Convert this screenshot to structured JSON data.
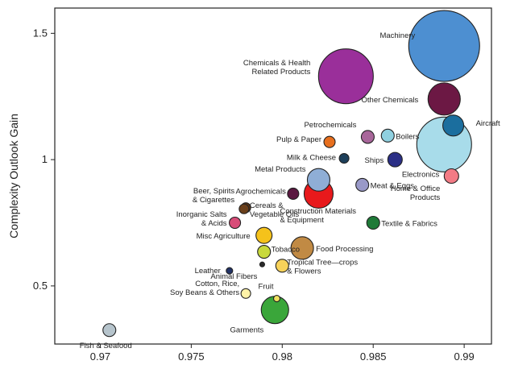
{
  "chart_data": {
    "type": "scatter",
    "title": "",
    "xlabel": "",
    "ylabel": "Complexity Outlook Gain",
    "xlim": [
      0.9675,
      0.9915
    ],
    "ylim": [
      0.27,
      1.6
    ],
    "x_ticks": [
      0.97,
      0.975,
      0.98,
      0.985,
      0.99
    ],
    "y_ticks": [
      0.5,
      1,
      1.5
    ],
    "x_tick_labels": [
      "0.97",
      "0.975",
      "0.98",
      "0.985",
      "0.99"
    ],
    "y_tick_labels": [
      "0.5",
      "1",
      "1.5"
    ],
    "grid": false,
    "points": [
      {
        "label": "Machinery",
        "x": 0.9889,
        "y": 1.45,
        "size": 22,
        "color": "#4d8fd1"
      },
      {
        "label": "Chemicals & Health|Related Products",
        "x": 0.9835,
        "y": 1.33,
        "size": 17,
        "color": "#9a2f9a"
      },
      {
        "label": "Other Chemicals",
        "x": 0.9889,
        "y": 1.24,
        "size": 10,
        "color": "#6c1844"
      },
      {
        "label": "Aircraft",
        "x": 0.9894,
        "y": 1.135,
        "size": 6.5,
        "color": "#1b6e9e"
      },
      {
        "label": "Electronics",
        "x": 0.9889,
        "y": 1.06,
        "size": 17,
        "color": "#a8dcea"
      },
      {
        "label": "Petrochemicals",
        "x": 0.9847,
        "y": 1.09,
        "size": 4,
        "color": "#a8669a"
      },
      {
        "label": "Boilers",
        "x": 0.9858,
        "y": 1.095,
        "size": 4,
        "color": "#8fd0e0"
      },
      {
        "label": "Pulp & Paper",
        "x": 0.9826,
        "y": 1.07,
        "size": 3.5,
        "color": "#e76f1e"
      },
      {
        "label": "Milk & Cheese",
        "x": 0.9834,
        "y": 1.005,
        "size": 3,
        "color": "#1d3f5a"
      },
      {
        "label": "Ships",
        "x": 0.9862,
        "y": 1.0,
        "size": 4.5,
        "color": "#2b2f86"
      },
      {
        "label": "Home & Office|Products",
        "x": 0.9893,
        "y": 0.935,
        "size": 4.5,
        "color": "#f27b85"
      },
      {
        "label": "Metal Products",
        "x": 0.982,
        "y": 0.92,
        "size": 7,
        "color": "#8faed6"
      },
      {
        "label": "Meat & Eggs",
        "x": 0.9844,
        "y": 0.9,
        "size": 4,
        "color": "#9999c8"
      },
      {
        "label": "Agrochemicals",
        "x": 0.9806,
        "y": 0.865,
        "size": 3.5,
        "color": "#5a1840"
      },
      {
        "label": "Construction Materials|& Equipment",
        "x": 0.982,
        "y": 0.865,
        "size": 9,
        "color": "#e8191c"
      },
      {
        "label": "Beer, Spirits|& Cigarettes",
        "x": 0.978,
        "y": 0.81,
        "size": 3,
        "color": "#5b3415"
      },
      {
        "label": "Cereals &|Vegetable Oils",
        "x": 0.9779,
        "y": 0.805,
        "size": 3,
        "color": "#6a3f1a"
      },
      {
        "label": "Inorganic Salts|& Acids",
        "x": 0.9774,
        "y": 0.75,
        "size": 3.5,
        "color": "#d84c78"
      },
      {
        "label": "Textile & Fabrics",
        "x": 0.985,
        "y": 0.75,
        "size": 4,
        "color": "#1f7a38"
      },
      {
        "label": "Misc Agriculture",
        "x": 0.979,
        "y": 0.7,
        "size": 5,
        "color": "#f5c21b"
      },
      {
        "label": "Food Processing",
        "x": 0.9811,
        "y": 0.65,
        "size": 7,
        "color": "#c18a44"
      },
      {
        "label": "Tobacco",
        "x": 0.979,
        "y": 0.635,
        "size": 4,
        "color": "#c8d93c"
      },
      {
        "label": "Animal Fibers",
        "x": 0.9789,
        "y": 0.585,
        "size": 1.5,
        "color": "#2a2a2a"
      },
      {
        "label": "Tropical Tree—crops|& Flowers",
        "x": 0.98,
        "y": 0.58,
        "size": 4,
        "color": "#f7d25a"
      },
      {
        "label": "Leather",
        "x": 0.9771,
        "y": 0.56,
        "size": 2,
        "color": "#223366"
      },
      {
        "label": "Cotton, Rice,|Soy Beans & Others",
        "x": 0.978,
        "y": 0.47,
        "size": 3,
        "color": "#fff3a8"
      },
      {
        "label": "Fruit",
        "x": 0.9797,
        "y": 0.45,
        "size": 2,
        "color": "#f0e060"
      },
      {
        "label": "Garments",
        "x": 0.9796,
        "y": 0.405,
        "size": 8.5,
        "color": "#3aa63a"
      },
      {
        "label": "Fish & Seafood",
        "x": 0.9705,
        "y": 0.325,
        "size": 4,
        "color": "#b6c4cc"
      }
    ]
  }
}
